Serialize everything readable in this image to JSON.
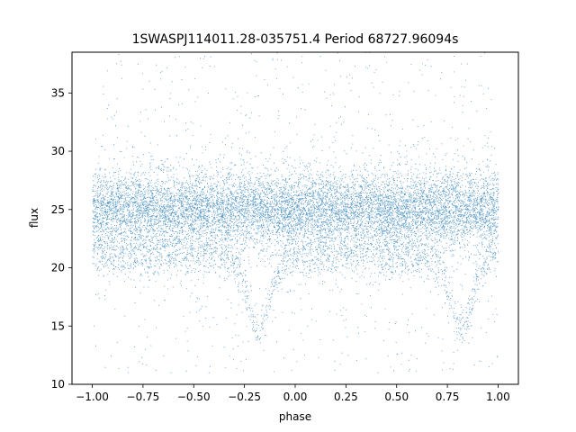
{
  "chart_data": {
    "type": "scatter",
    "title": "1SWASPJ114011.28-035751.4 Period 68727.96094s",
    "xlabel": "phase",
    "ylabel": "flux",
    "xlim": [
      -1.1,
      1.1
    ],
    "ylim": [
      10,
      38.5
    ],
    "x_ticks": [
      -1.0,
      -0.75,
      -0.5,
      -0.25,
      0.0,
      0.25,
      0.5,
      0.75,
      1.0
    ],
    "x_tick_labels": [
      "−1.00",
      "−0.75",
      "−0.50",
      "−0.25",
      "0.00",
      "0.25",
      "0.50",
      "0.75",
      "1.00"
    ],
    "y_ticks": [
      10,
      15,
      20,
      25,
      30,
      35
    ],
    "y_tick_labels": [
      "10",
      "15",
      "20",
      "25",
      "30",
      "35"
    ],
    "grid": false,
    "legend": "none",
    "marker_color": "#1f77b4",
    "series": [
      {
        "x_range": [
          -1.0,
          1.0
        ],
        "baseline_flux": 25,
        "baseline_spread": [
          22,
          28.5
        ],
        "lower_branch_flux": 21,
        "eclipse_min_flux": 15,
        "eclipse_phase": [
          -0.18,
          0.82
        ],
        "outlier_range": [
          11,
          38.5
        ]
      }
    ]
  }
}
